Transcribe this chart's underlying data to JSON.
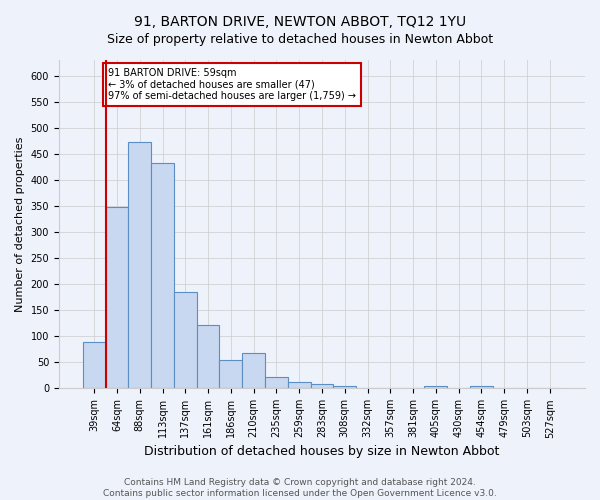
{
  "title": "91, BARTON DRIVE, NEWTON ABBOT, TQ12 1YU",
  "subtitle": "Size of property relative to detached houses in Newton Abbot",
  "xlabel": "Distribution of detached houses by size in Newton Abbot",
  "ylabel": "Number of detached properties",
  "categories": [
    "39sqm",
    "64sqm",
    "88sqm",
    "113sqm",
    "137sqm",
    "161sqm",
    "186sqm",
    "210sqm",
    "235sqm",
    "259sqm",
    "283sqm",
    "308sqm",
    "332sqm",
    "357sqm",
    "381sqm",
    "405sqm",
    "430sqm",
    "454sqm",
    "479sqm",
    "503sqm",
    "527sqm"
  ],
  "values": [
    88,
    348,
    473,
    432,
    184,
    122,
    55,
    68,
    22,
    13,
    8,
    5,
    0,
    0,
    0,
    5,
    0,
    5,
    0,
    0,
    0
  ],
  "bar_color": "#c8d8f0",
  "bar_edge_color": "#5b8ec4",
  "property_line_color": "#cc0000",
  "annotation_text": "91 BARTON DRIVE: 59sqm\n← 3% of detached houses are smaller (47)\n97% of semi-detached houses are larger (1,759) →",
  "annotation_box_color": "#ffffff",
  "annotation_box_edge_color": "#cc0000",
  "ylim": [
    0,
    630
  ],
  "yticks": [
    0,
    50,
    100,
    150,
    200,
    250,
    300,
    350,
    400,
    450,
    500,
    550,
    600
  ],
  "grid_color": "#cccccc",
  "bg_color": "#eef2fb",
  "footer_line1": "Contains HM Land Registry data © Crown copyright and database right 2024.",
  "footer_line2": "Contains public sector information licensed under the Open Government Licence v3.0.",
  "title_fontsize": 10,
  "subtitle_fontsize": 9,
  "xlabel_fontsize": 9,
  "ylabel_fontsize": 8,
  "tick_fontsize": 7,
  "footer_fontsize": 6.5
}
